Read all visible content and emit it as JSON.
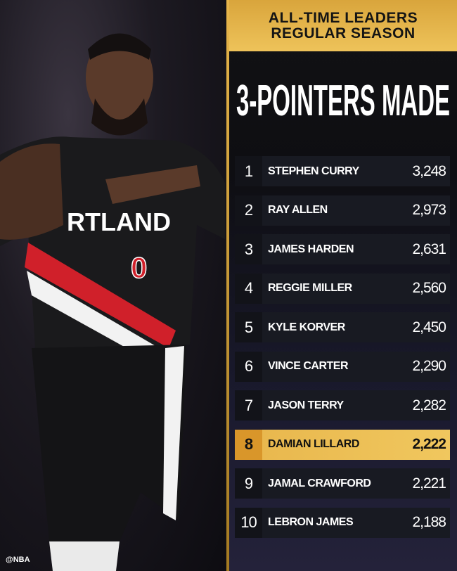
{
  "header": {
    "line1": "ALL-TIME LEADERS",
    "line2": "REGULAR SEASON"
  },
  "title": "3-POINTERS MADE",
  "colors": {
    "gold": "#e8b64c",
    "row": "#181a22",
    "text": "#ffffff"
  },
  "leaders": [
    {
      "rank": "1",
      "name": "STEPHEN CURRY",
      "value": "3,248"
    },
    {
      "rank": "2",
      "name": "RAY ALLEN",
      "value": "2,973"
    },
    {
      "rank": "3",
      "name": "JAMES HARDEN",
      "value": "2,631"
    },
    {
      "rank": "4",
      "name": "REGGIE MILLER",
      "value": "2,560"
    },
    {
      "rank": "5",
      "name": "KYLE KORVER",
      "value": "2,450"
    },
    {
      "rank": "6",
      "name": "VINCE CARTER",
      "value": "2,290"
    },
    {
      "rank": "7",
      "name": "JASON TERRY",
      "value": "2,282"
    },
    {
      "rank": "8",
      "name": "DAMIAN LILLARD",
      "value": "2,222",
      "highlighted": true
    },
    {
      "rank": "9",
      "name": "JAMAL CRAWFORD",
      "value": "2,221"
    },
    {
      "rank": "10",
      "name": "LEBRON JAMES",
      "value": "2,188"
    }
  ],
  "photo": {
    "jersey_text": "RTLAND",
    "jersey_number": "0",
    "watermark": "@NBA"
  }
}
